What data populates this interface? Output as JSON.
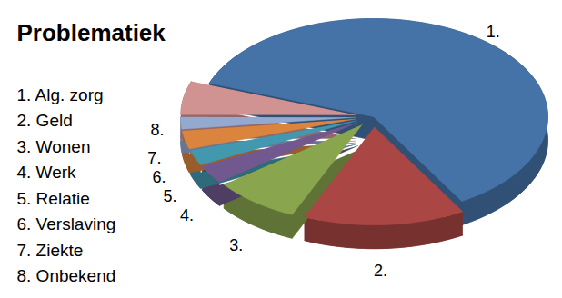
{
  "chart_data": {
    "type": "pie",
    "title": "Problematiek",
    "categories": [
      "1. Alg. zorg",
      "2. Geld",
      "3. Wonen",
      "4. Werk",
      "5. Relatie",
      "6. Verslaving",
      "7. Ziekte",
      "8. Onbekend"
    ],
    "slice_labels": [
      "1.",
      "2.",
      "3.",
      "4.",
      "5.",
      "6.",
      "7.",
      "8."
    ],
    "values": [
      61,
      15,
      8,
      3,
      2.5,
      3,
      2,
      5.5
    ],
    "colors": [
      "#4572a7",
      "#aa4643",
      "#89a54e",
      "#71588f",
      "#4198af",
      "#db843d",
      "#93a9cf",
      "#d19392"
    ],
    "legend": "left"
  }
}
